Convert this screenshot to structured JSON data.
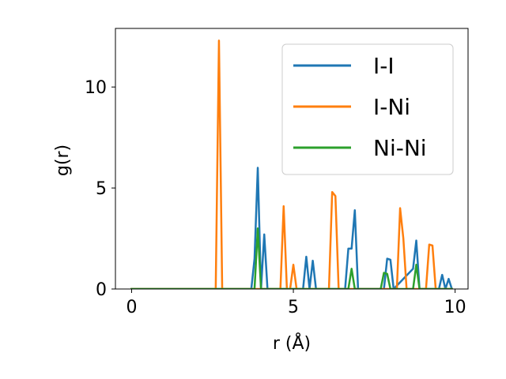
{
  "chart_data": {
    "type": "line",
    "xlabel": "r (Å)",
    "ylabel": "g(r)",
    "xlim": [
      -0.5,
      10.4
    ],
    "ylim": [
      0,
      12.9
    ],
    "x_ticks": [
      0,
      5,
      10
    ],
    "x_tick_labels": [
      "0",
      "5",
      "10"
    ],
    "y_ticks": [
      0,
      5,
      10
    ],
    "y_tick_labels": [
      "0",
      "5",
      "10"
    ],
    "grid": false,
    "legend_position": "upper-right",
    "series": [
      {
        "name": "I-I",
        "color": "#1f77b4",
        "x": [
          0,
          3.7,
          3.8,
          3.9,
          4.0,
          4.1,
          4.2,
          5.3,
          5.4,
          5.5,
          5.6,
          5.7,
          5.8,
          6.6,
          6.7,
          6.8,
          6.9,
          7.0,
          7.8,
          7.9,
          8.0,
          8.1,
          8.7,
          8.8,
          8.9,
          9.5,
          9.6,
          9.7,
          9.8,
          9.9
        ],
        "y": [
          0,
          0,
          1.5,
          6.0,
          0,
          2.7,
          0,
          0,
          1.6,
          0,
          1.4,
          0,
          0,
          0,
          2.0,
          2.0,
          3.9,
          0,
          0,
          1.5,
          1.45,
          0,
          1.0,
          2.4,
          0,
          0,
          0.7,
          0,
          0.5,
          0
        ]
      },
      {
        "name": "I-Ni",
        "color": "#ff7f0e",
        "x": [
          0,
          2.6,
          2.7,
          2.8,
          4.6,
          4.7,
          4.8,
          4.9,
          5.0,
          5.1,
          6.1,
          6.2,
          6.3,
          6.4,
          8.2,
          8.3,
          8.4,
          8.5,
          9.1,
          9.2,
          9.3,
          9.4,
          9.9
        ],
        "y": [
          0,
          0,
          12.3,
          0,
          0,
          4.1,
          0,
          0,
          1.2,
          0,
          0,
          4.8,
          4.6,
          0,
          0,
          4.0,
          2.5,
          0,
          0,
          2.2,
          2.15,
          0,
          0
        ]
      },
      {
        "name": "Ni-Ni",
        "color": "#2ca02c",
        "x": [
          0,
          3.8,
          3.9,
          4.0,
          6.6,
          6.7,
          6.8,
          6.9,
          7.7,
          7.8,
          7.9,
          8.0,
          8.7,
          8.8,
          8.9,
          9.9
        ],
        "y": [
          0,
          0,
          3.0,
          0,
          0,
          0,
          1.0,
          0,
          0,
          0.8,
          0.75,
          0,
          0,
          1.2,
          0,
          0
        ]
      }
    ]
  }
}
